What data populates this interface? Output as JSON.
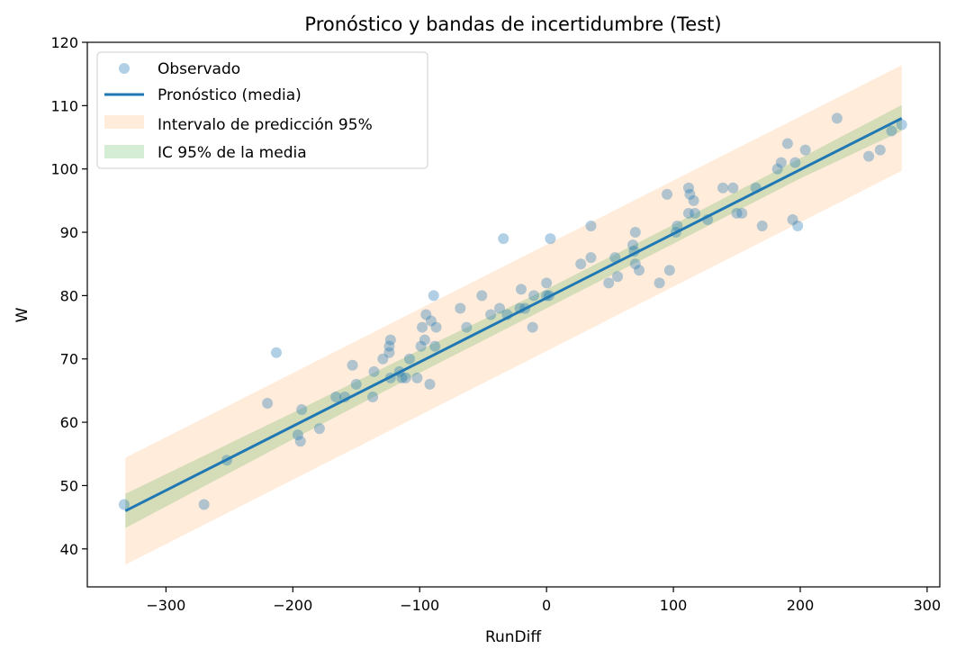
{
  "chart_data": {
    "type": "scatter",
    "title": "Pronóstico y bandas de incertidumbre (Test)",
    "xlabel": "RunDiff",
    "ylabel": "W",
    "xlim": [
      -362,
      310
    ],
    "ylim": [
      34,
      120
    ],
    "xticks": [
      -300,
      -200,
      -100,
      0,
      100,
      200,
      300
    ],
    "yticks": [
      40,
      50,
      60,
      70,
      80,
      90,
      100,
      110,
      120
    ],
    "xtick_labels": [
      "−300",
      "−200",
      "−100",
      "0",
      "100",
      "200",
      "300"
    ],
    "ytick_labels": [
      "40",
      "50",
      "60",
      "70",
      "80",
      "90",
      "100",
      "110",
      "120"
    ],
    "grid": false,
    "legend": {
      "position": "upper-left",
      "entries": [
        "Observado",
        "Pronóstico (media)",
        "Intervalo de predicción 95%",
        "IC 95% de la media"
      ]
    },
    "colors": {
      "observed": "#1f77b4",
      "mean_line": "#1f77b4",
      "prediction_band": "#ff7f0e",
      "confidence_band": "#2ca02c"
    },
    "mean_line": {
      "x": [
        -332,
        280
      ],
      "y": [
        46,
        108
      ]
    },
    "prediction_interval": {
      "x": [
        -332,
        280
      ],
      "lower": [
        37.5,
        99.7
      ],
      "upper": [
        54.4,
        116.4
      ]
    },
    "confidence_interval": {
      "x": [
        -332,
        -200,
        -100,
        0,
        100,
        200,
        280
      ],
      "lower": [
        43.3,
        57.3,
        67.8,
        78.0,
        88.2,
        98.5,
        106.0
      ],
      "upper": [
        48.7,
        61.5,
        71.4,
        81.0,
        91.2,
        101.7,
        110.1
      ]
    },
    "series": [
      {
        "name": "Observado",
        "points": [
          [
            -333,
            47
          ],
          [
            -270,
            47
          ],
          [
            -252,
            54
          ],
          [
            -220,
            63
          ],
          [
            -213,
            71
          ],
          [
            -196,
            58
          ],
          [
            -194,
            57
          ],
          [
            -193,
            62
          ],
          [
            -179,
            59
          ],
          [
            -166,
            64
          ],
          [
            -159,
            64
          ],
          [
            -153,
            69
          ],
          [
            -150,
            66
          ],
          [
            -137,
            64
          ],
          [
            -136,
            68
          ],
          [
            -129,
            70
          ],
          [
            -124,
            72
          ],
          [
            -124,
            71
          ],
          [
            -123,
            73
          ],
          [
            -123,
            67
          ],
          [
            -116,
            68
          ],
          [
            -114,
            67
          ],
          [
            -111,
            67
          ],
          [
            -108,
            70
          ],
          [
            -102,
            67
          ],
          [
            -99,
            72
          ],
          [
            -98,
            75
          ],
          [
            -96,
            73
          ],
          [
            -95,
            77
          ],
          [
            -92,
            66
          ],
          [
            -91,
            76
          ],
          [
            -89,
            80
          ],
          [
            -88,
            72
          ],
          [
            -87,
            75
          ],
          [
            -68,
            78
          ],
          [
            -63,
            75
          ],
          [
            -51,
            80
          ],
          [
            -44,
            77
          ],
          [
            -37,
            78
          ],
          [
            -34,
            89
          ],
          [
            -31,
            77
          ],
          [
            -21,
            78
          ],
          [
            -20,
            81
          ],
          [
            -17,
            78
          ],
          [
            -11,
            75
          ],
          [
            -10,
            80
          ],
          [
            0,
            82
          ],
          [
            0,
            80
          ],
          [
            2,
            80
          ],
          [
            3,
            89
          ],
          [
            27,
            85
          ],
          [
            35,
            86
          ],
          [
            35,
            91
          ],
          [
            49,
            82
          ],
          [
            54,
            86
          ],
          [
            56,
            83
          ],
          [
            68,
            88
          ],
          [
            69,
            87
          ],
          [
            70,
            90
          ],
          [
            70,
            85
          ],
          [
            73,
            84
          ],
          [
            89,
            82
          ],
          [
            95,
            96
          ],
          [
            97,
            84
          ],
          [
            102,
            90
          ],
          [
            103,
            91
          ],
          [
            112,
            97
          ],
          [
            112,
            93
          ],
          [
            113,
            96
          ],
          [
            116,
            95
          ],
          [
            117,
            93
          ],
          [
            127,
            92
          ],
          [
            139,
            97
          ],
          [
            147,
            97
          ],
          [
            150,
            93
          ],
          [
            154,
            93
          ],
          [
            165,
            97
          ],
          [
            170,
            91
          ],
          [
            182,
            100
          ],
          [
            185,
            101
          ],
          [
            190,
            104
          ],
          [
            194,
            92
          ],
          [
            196,
            101
          ],
          [
            198,
            91
          ],
          [
            204,
            103
          ],
          [
            229,
            108
          ],
          [
            254,
            102
          ],
          [
            263,
            103
          ],
          [
            272,
            106
          ],
          [
            280,
            107
          ]
        ]
      }
    ]
  }
}
